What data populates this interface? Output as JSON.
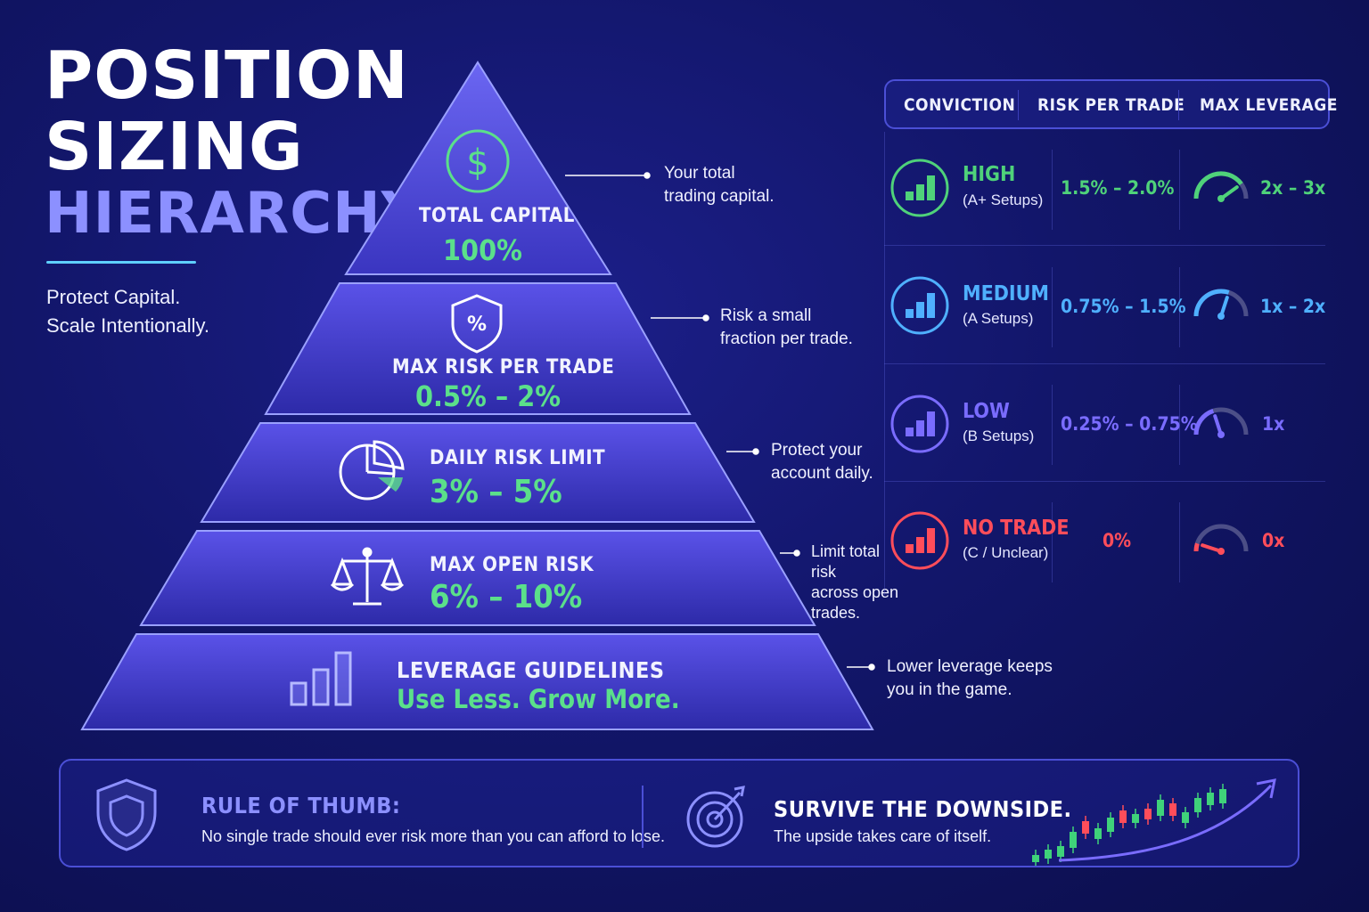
{
  "header": {
    "title_line1": "POSITION",
    "title_line2": "SIZING",
    "title_line3": "HIERARCHY",
    "tagline_line1": "Protect Capital.",
    "tagline_line2": "Scale Intentionally."
  },
  "pyramid": {
    "tiers": [
      {
        "title": "TOTAL CAPITAL",
        "value": "100%",
        "icon": "dollar-circle-icon",
        "callout_line1": "Your total",
        "callout_line2": "trading capital."
      },
      {
        "title": "MAX RISK PER TRADE",
        "value": "0.5% – 2%",
        "icon": "percent-shield-icon",
        "callout_line1": "Risk a small",
        "callout_line2": "fraction per trade."
      },
      {
        "title": "DAILY RISK LIMIT",
        "value": "3% – 5%",
        "icon": "pie-chart-icon",
        "callout_line1": "Protect your",
        "callout_line2": "account daily."
      },
      {
        "title": "MAX OPEN RISK",
        "value": "6% – 10%",
        "icon": "scales-icon",
        "callout_line1": "Limit total",
        "callout_line2": "risk",
        "callout_line3": "across open",
        "callout_line4": "trades."
      },
      {
        "title": "LEVERAGE GUIDELINES",
        "value": "Use Less. Grow More.",
        "icon": "bar-chart-icon",
        "callout_line1": "Lower leverage keeps",
        "callout_line2": "you in the game."
      }
    ]
  },
  "table": {
    "headers": [
      "CONVICTION",
      "RISK PER TRADE",
      "MAX LEVERAGE"
    ],
    "rows": [
      {
        "label": "HIGH",
        "sub": "(A+ Setups)",
        "risk": "1.5% – 2.0%",
        "leverage": "2x – 3x",
        "color": "#4fd27a",
        "gauge_level": 0.8
      },
      {
        "label": "MEDIUM",
        "sub": "(A Setups)",
        "risk": "0.75% – 1.5%",
        "leverage": "1x – 2x",
        "color": "#4fb0ff",
        "gauge_level": 0.6
      },
      {
        "label": "LOW",
        "sub": "(B Setups)",
        "risk": "0.25% – 0.75%",
        "leverage": "1x",
        "color": "#7a6cff",
        "gauge_level": 0.4
      },
      {
        "label": "NO TRADE",
        "sub": "(C / Unclear)",
        "risk": "0%",
        "leverage": "0x",
        "color": "#ff4d5a",
        "gauge_level": 0.1
      }
    ]
  },
  "footer": {
    "rule_title": "RULE OF THUMB:",
    "rule_text": "No single trade should ever risk more than you can afford to lose.",
    "survive_title": "SURVIVE THE DOWNSIDE.",
    "survive_text": "The upside takes care of itself.",
    "colors": {
      "rule_title": "#8c90ff",
      "survive_title": "#ffffff",
      "candle_up": "#3fd27a",
      "candle_down": "#ff4d5a",
      "arrow": "#7a6cff"
    }
  }
}
